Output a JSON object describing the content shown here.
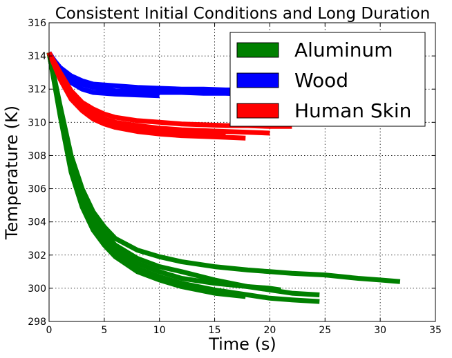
{
  "chart_data": {
    "type": "line",
    "title": "Consistent Initial Conditions and Long Duration",
    "xlabel": "Time (s)",
    "ylabel": "Temperature (K)",
    "xlim": [
      0,
      35
    ],
    "ylim": [
      298,
      316
    ],
    "xticks": [
      0,
      5,
      10,
      15,
      20,
      25,
      30,
      35
    ],
    "yticks": [
      298,
      300,
      302,
      304,
      306,
      308,
      310,
      312,
      314,
      316
    ],
    "grid": true,
    "legend": {
      "position": "top-right"
    },
    "series": [
      {
        "name": "Aluminum",
        "color": "#008000",
        "runs": [
          {
            "x": [
              0,
              1,
              2,
              3,
              4,
              5,
              6,
              8,
              10,
              12,
              15,
              18,
              20,
              22,
              25,
              28,
              30,
              31.8
            ],
            "y": [
              314.2,
              311.0,
              308.0,
              306.0,
              304.6,
              303.7,
              303.0,
              302.3,
              301.9,
              301.6,
              301.3,
              301.1,
              301.0,
              300.9,
              300.8,
              300.6,
              300.5,
              300.4
            ]
          },
          {
            "x": [
              0,
              1,
              2,
              3,
              4,
              5,
              6,
              8,
              10,
              12,
              15,
              18,
              20,
              22,
              24.5
            ],
            "y": [
              314.2,
              310.8,
              307.6,
              305.6,
              304.2,
              303.3,
              302.6,
              301.8,
              301.3,
              301.0,
              300.5,
              300.1,
              299.9,
              299.7,
              299.6
            ]
          },
          {
            "x": [
              0,
              1,
              2,
              3,
              4,
              5,
              6,
              8,
              10,
              12,
              15,
              18,
              20,
              22,
              24.5
            ],
            "y": [
              314.2,
              310.5,
              307.2,
              305.1,
              303.7,
              302.8,
              302.1,
              301.2,
              300.7,
              300.3,
              299.9,
              299.6,
              299.4,
              299.3,
              299.2
            ]
          },
          {
            "x": [
              0,
              1,
              2,
              3,
              4,
              5,
              6,
              8,
              10,
              12,
              15,
              18,
              20,
              21
            ],
            "y": [
              314.2,
              310.6,
              307.4,
              305.3,
              303.9,
              303.0,
              302.3,
              301.5,
              301.0,
              300.6,
              300.3,
              300.1,
              300.0,
              299.9
            ]
          },
          {
            "x": [
              0,
              1,
              2,
              3,
              4,
              5,
              6,
              8,
              10,
              12,
              15,
              17.8
            ],
            "y": [
              314.2,
              310.4,
              307.0,
              304.9,
              303.5,
              302.6,
              301.9,
              301.0,
              300.5,
              300.1,
              299.7,
              299.5
            ]
          }
        ]
      },
      {
        "name": "Wood",
        "color": "#0000ff",
        "runs": [
          {
            "x": [
              0,
              0.5,
              1,
              2,
              3,
              4,
              6,
              8,
              10,
              12,
              14,
              16,
              18,
              20,
              22,
              23.5
            ],
            "y": [
              314.2,
              313.7,
              313.3,
              312.8,
              312.5,
              312.3,
              312.2,
              312.1,
              312.05,
              312.0,
              312.0,
              311.95,
              311.95,
              311.9,
              311.9,
              311.9
            ]
          },
          {
            "x": [
              0,
              0.5,
              1,
              2,
              3,
              4,
              6,
              8,
              10,
              12,
              14,
              16,
              18,
              20,
              22
            ],
            "y": [
              314.2,
              313.6,
              313.2,
              312.6,
              312.3,
              312.1,
              311.9,
              311.85,
              311.8,
              311.8,
              311.75,
              311.75,
              311.7,
              311.7,
              311.7
            ]
          },
          {
            "x": [
              0,
              0.5,
              1,
              2,
              3,
              4,
              6,
              8,
              10
            ],
            "y": [
              314.2,
              313.5,
              313.0,
              312.4,
              312.0,
              311.8,
              311.7,
              311.65,
              311.6
            ]
          }
        ]
      },
      {
        "name": "Human Skin",
        "color": "#ff0000",
        "runs": [
          {
            "x": [
              0,
              1,
              2,
              3,
              4,
              5,
              6,
              8,
              10,
              12,
              14,
              16,
              18,
              20,
              22
            ],
            "y": [
              314.2,
              313.0,
              311.9,
              311.2,
              310.8,
              310.5,
              310.3,
              310.1,
              310.0,
              309.9,
              309.85,
              309.8,
              309.8,
              309.75,
              309.75
            ]
          },
          {
            "x": [
              0,
              1,
              2,
              3,
              4,
              5,
              6,
              8,
              10,
              12,
              14,
              16,
              18,
              20
            ],
            "y": [
              314.2,
              312.8,
              311.7,
              311.0,
              310.5,
              310.2,
              310.0,
              309.8,
              309.65,
              309.55,
              309.5,
              309.45,
              309.4,
              309.35
            ]
          },
          {
            "x": [
              0,
              1,
              2,
              3,
              4,
              5,
              6,
              8,
              10,
              12,
              14,
              16,
              17.8
            ],
            "y": [
              314.2,
              312.6,
              311.4,
              310.7,
              310.2,
              309.9,
              309.7,
              309.45,
              309.3,
              309.2,
              309.15,
              309.1,
              309.05
            ]
          },
          {
            "x": [
              0,
              1,
              2,
              3,
              4,
              5,
              6,
              8,
              10,
              12,
              14,
              16
            ],
            "y": [
              314.2,
              312.7,
              311.5,
              310.8,
              310.3,
              310.0,
              309.8,
              309.6,
              309.45,
              309.35,
              309.3,
              309.25
            ]
          }
        ]
      }
    ]
  }
}
